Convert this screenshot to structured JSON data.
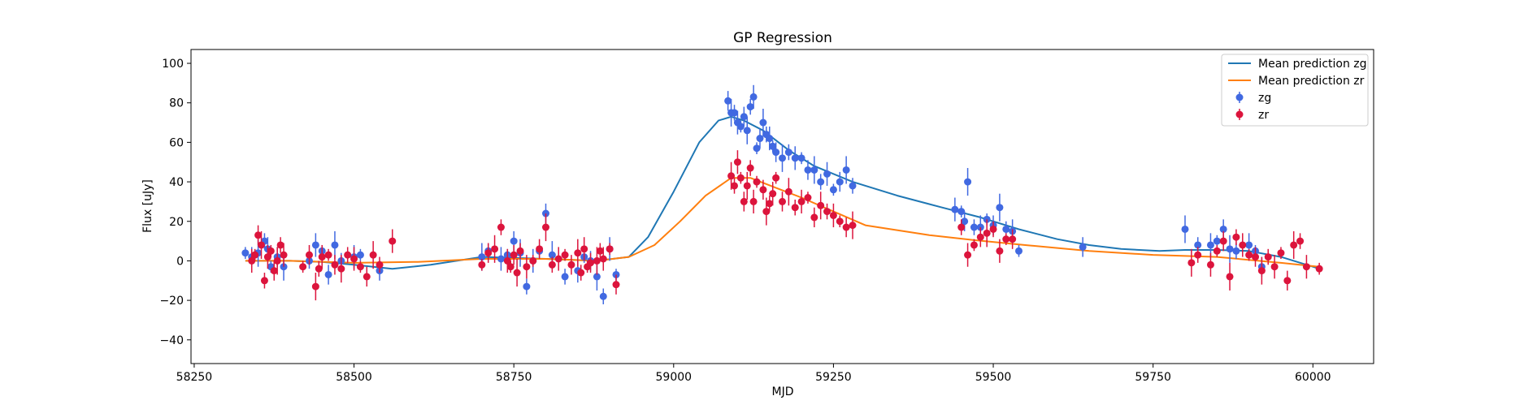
{
  "chart_data": {
    "type": "scatter",
    "title": "GP Regression",
    "xlabel": "MJD",
    "ylabel": "Flux [uJy]",
    "xlim": [
      58245,
      60095
    ],
    "ylim": [
      -52,
      107
    ],
    "xticks": [
      58250,
      58500,
      58750,
      59000,
      59250,
      59500,
      59750,
      60000
    ],
    "yticks": [
      -40,
      -20,
      0,
      20,
      40,
      60,
      80,
      100
    ],
    "grid": false,
    "legend_position": "top-right",
    "lines": [
      {
        "name": "Mean prediction zg",
        "color": "#1f77b4",
        "x": [
          58330,
          58400,
          58450,
          58500,
          58560,
          58620,
          58700,
          58800,
          58880,
          58930,
          58960,
          59000,
          59040,
          59070,
          59090,
          59110,
          59140,
          59180,
          59220,
          59280,
          59350,
          59420,
          59480,
          59540,
          59600,
          59650,
          59700,
          59760,
          59800,
          59850,
          59900,
          59950,
          60000,
          60010
        ],
        "y": [
          0,
          0,
          -0.5,
          -2,
          -4,
          -2,
          2,
          1,
          0,
          2,
          12,
          35,
          60,
          71,
          73,
          71,
          66,
          56,
          48,
          40,
          33,
          27,
          22,
          16,
          11,
          8,
          6,
          5,
          5.5,
          5.5,
          5,
          2,
          -3,
          -4
        ]
      },
      {
        "name": "Mean prediction zr",
        "color": "#ff7f0e",
        "x": [
          58330,
          58400,
          58500,
          58600,
          58700,
          58800,
          58880,
          58930,
          58970,
          59010,
          59050,
          59090,
          59120,
          59160,
          59200,
          59250,
          59300,
          59400,
          59470,
          59550,
          59650,
          59750,
          59850,
          59950,
          60010
        ],
        "y": [
          0,
          0,
          -1,
          -0.5,
          1,
          1,
          0,
          2,
          8,
          20,
          33,
          42,
          42,
          37,
          32,
          25,
          18,
          13,
          10.5,
          8,
          5,
          3,
          2,
          -1,
          -3
        ]
      }
    ],
    "series": [
      {
        "name": "zg",
        "color": "#4169e1",
        "x": [
          58330,
          58340,
          58350,
          58360,
          58365,
          58370,
          58380,
          58390,
          58430,
          58440,
          58450,
          58460,
          58470,
          58480,
          58500,
          58510,
          58540,
          58700,
          58710,
          58730,
          58740,
          58750,
          58760,
          58770,
          58780,
          58790,
          58800,
          58810,
          58830,
          58850,
          58860,
          58870,
          58880,
          58890,
          58900,
          58910,
          59085,
          59090,
          59095,
          59100,
          59105,
          59110,
          59115,
          59120,
          59125,
          59130,
          59135,
          59140,
          59145,
          59150,
          59155,
          59160,
          59170,
          59180,
          59190,
          59200,
          59210,
          59220,
          59230,
          59240,
          59250,
          59260,
          59270,
          59280,
          59440,
          59450,
          59455,
          59460,
          59470,
          59480,
          59490,
          59500,
          59510,
          59520,
          59530,
          59540,
          59640,
          59800,
          59820,
          59840,
          59850,
          59860,
          59870,
          59880,
          59900,
          59910,
          59920
        ],
        "y": [
          4,
          2,
          4,
          10,
          6,
          -3,
          2,
          -3,
          0,
          8,
          5,
          -7,
          8,
          0,
          2,
          3,
          -5,
          2,
          5,
          1,
          3,
          10,
          4,
          -13,
          0,
          5,
          24,
          3,
          -8,
          -5,
          2,
          0,
          -8,
          -18,
          6,
          -7,
          81,
          75,
          75,
          70,
          68,
          73,
          66,
          78,
          83,
          57,
          62,
          70,
          64,
          62,
          58,
          55,
          52,
          55,
          52,
          52,
          46,
          46,
          40,
          44,
          36,
          40,
          46,
          38,
          26,
          25,
          20,
          40,
          17,
          17,
          21,
          18,
          27,
          16,
          15,
          5,
          7,
          16,
          8,
          8,
          10,
          16,
          6,
          5,
          8,
          5,
          -3
        ]
      },
      {
        "name": "zr",
        "color": "#dc143c",
        "x": [
          58340,
          58345,
          58350,
          58355,
          58360,
          58365,
          58370,
          58375,
          58380,
          58385,
          58390,
          58420,
          58430,
          58440,
          58445,
          58450,
          58460,
          58470,
          58480,
          58490,
          58500,
          58510,
          58520,
          58530,
          58540,
          58560,
          58700,
          58710,
          58720,
          58730,
          58740,
          58745,
          58750,
          58755,
          58760,
          58770,
          58780,
          58790,
          58800,
          58810,
          58820,
          58830,
          58840,
          58850,
          58855,
          58860,
          58865,
          58870,
          58880,
          58885,
          58890,
          58900,
          58910,
          59090,
          59095,
          59100,
          59105,
          59110,
          59115,
          59120,
          59125,
          59130,
          59140,
          59145,
          59150,
          59155,
          59160,
          59170,
          59180,
          59190,
          59200,
          59210,
          59220,
          59230,
          59240,
          59250,
          59260,
          59270,
          59280,
          59450,
          59460,
          59470,
          59480,
          59490,
          59500,
          59510,
          59520,
          59530,
          59810,
          59820,
          59840,
          59850,
          59860,
          59870,
          59880,
          59890,
          59900,
          59910,
          59920,
          59930,
          59940,
          59950,
          59960,
          59970,
          59980,
          59990,
          60010
        ],
        "y": [
          0,
          3,
          13,
          8,
          -10,
          2,
          5,
          -5,
          0,
          8,
          3,
          -3,
          3,
          -13,
          -4,
          2,
          3,
          -2,
          -4,
          3,
          1,
          -3,
          -8,
          3,
          -2,
          10,
          -2,
          4,
          6,
          17,
          0,
          -3,
          3,
          -6,
          5,
          -3,
          0,
          6,
          17,
          -2,
          1,
          3,
          -2,
          4,
          -6,
          6,
          -3,
          -1,
          0,
          5,
          1,
          6,
          -12,
          43,
          38,
          50,
          42,
          30,
          38,
          47,
          30,
          40,
          36,
          25,
          29,
          34,
          42,
          30,
          35,
          27,
          30,
          32,
          22,
          28,
          25,
          23,
          20,
          17,
          18,
          17,
          3,
          8,
          12,
          14,
          16,
          5,
          11,
          11,
          -1,
          3,
          -2,
          5,
          10,
          -8,
          12,
          8,
          3,
          2,
          -5,
          2,
          -3,
          4,
          -10,
          8,
          10,
          -3,
          -4
        ]
      }
    ]
  }
}
